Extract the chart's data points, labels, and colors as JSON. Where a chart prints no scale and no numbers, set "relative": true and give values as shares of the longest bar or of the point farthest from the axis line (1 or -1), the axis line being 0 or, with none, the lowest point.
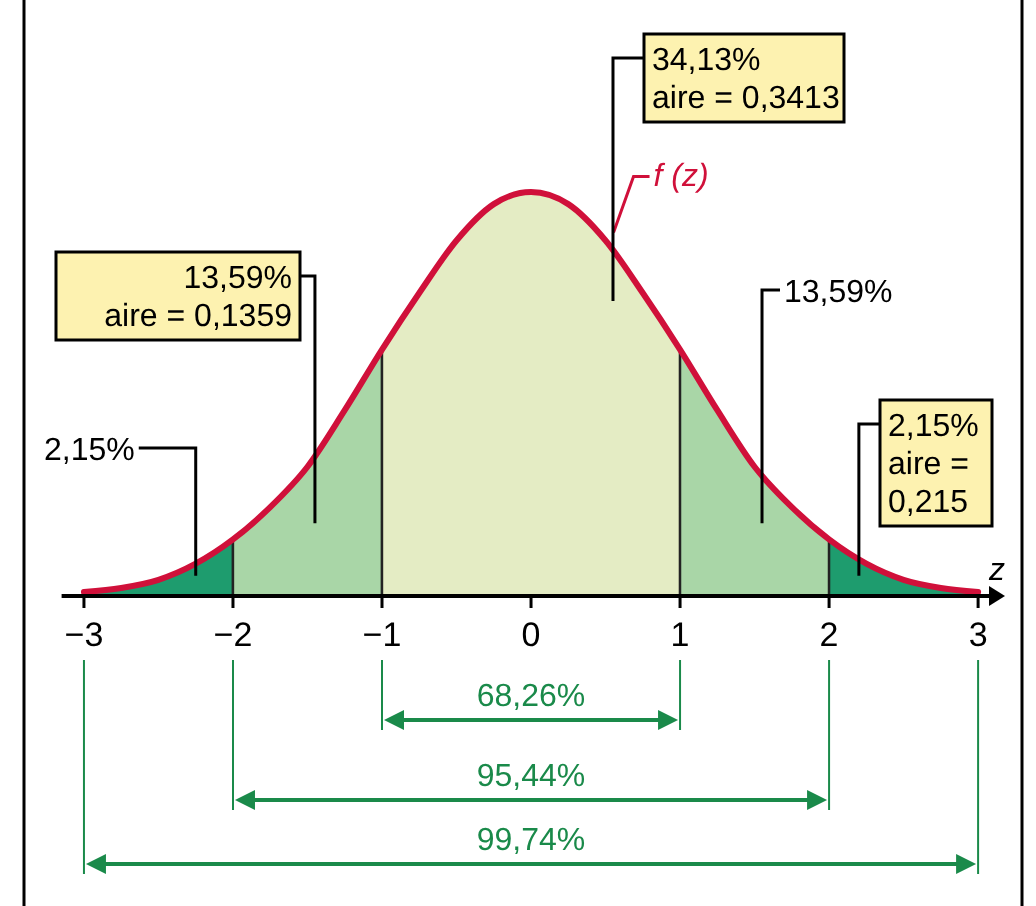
{
  "chart_data": {
    "type": "area",
    "relative": true,
    "xlabel": "z",
    "grid": false,
    "xlim": [
      -3.15,
      3.1
    ],
    "xticks": [
      {
        "value": -3,
        "label": "−3"
      },
      {
        "value": -2,
        "label": "−2"
      },
      {
        "value": -1,
        "label": "−1"
      },
      0,
      1,
      2,
      3
    ],
    "series": [
      {
        "type": "line",
        "name": "f (z)",
        "color": "#d0103a",
        "x": [
          -3,
          -2.75,
          -2.5,
          -2.25,
          -2,
          -1.75,
          -1.5,
          -1.25,
          -1,
          -0.75,
          -0.5,
          -0.25,
          0,
          0.25,
          0.5,
          0.75,
          1,
          1.25,
          1.5,
          1.75,
          2,
          2.25,
          2.5,
          2.75,
          3
        ],
        "values": [
          0.01,
          0.02,
          0.04,
          0.08,
          0.14,
          0.22,
          0.32,
          0.46,
          0.61,
          0.75,
          0.88,
          0.97,
          1,
          0.97,
          0.88,
          0.75,
          0.61,
          0.46,
          0.32,
          0.22,
          0.14,
          0.08,
          0.04,
          0.02,
          0.01
        ]
      },
      {
        "color": "#1e9c6e",
        "x": [
          -3,
          -2.75,
          -2.5,
          -2.25,
          -2
        ],
        "values": [
          0.01,
          0.02,
          0.04,
          0.08,
          0.14
        ]
      },
      {
        "color": "#a9d6a7",
        "x": [
          -2,
          -1.75,
          -1.5,
          -1.25,
          -1
        ],
        "values": [
          0.14,
          0.22,
          0.32,
          0.46,
          0.61
        ]
      },
      {
        "color": "#e4ecc4",
        "x": [
          -1,
          -0.75,
          -0.5,
          -0.25,
          0,
          0.25,
          0.5,
          0.75,
          1
        ],
        "values": [
          0.61,
          0.75,
          0.88,
          0.97,
          1,
          0.97,
          0.88,
          0.75,
          0.61
        ]
      },
      {
        "color": "#a9d6a7",
        "x": [
          1,
          1.25,
          1.5,
          1.75,
          2
        ],
        "values": [
          0.61,
          0.46,
          0.32,
          0.22,
          0.14
        ]
      },
      {
        "color": "#1e9c6e",
        "x": [
          2,
          2.25,
          2.5,
          2.75,
          3
        ],
        "values": [
          0.14,
          0.08,
          0.04,
          0.02,
          0.01
        ]
      }
    ],
    "annotations": [
      "34,13%\naire = 0,3413",
      "13,59%\naire = 0,1359",
      "13,59%",
      "2,15%",
      "2,15%\naire =\n0,215",
      "68,26%",
      "95,44%",
      "99,74%"
    ]
  }
}
